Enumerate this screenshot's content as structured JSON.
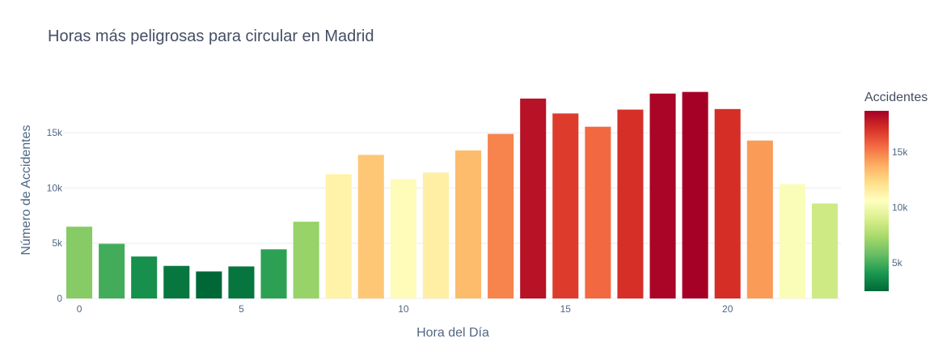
{
  "chart_data": {
    "type": "bar",
    "title": "Horas más peligrosas para circular en Madrid",
    "xlabel": "Hora del Día",
    "ylabel": "Número de Accidentes",
    "x": [
      0,
      1,
      2,
      3,
      4,
      5,
      6,
      7,
      8,
      9,
      10,
      11,
      12,
      13,
      14,
      15,
      16,
      17,
      18,
      19,
      20,
      21,
      22,
      23
    ],
    "values": [
      6500,
      4950,
      3800,
      2950,
      2450,
      2900,
      4450,
      6950,
      11250,
      13000,
      10800,
      11400,
      13400,
      14900,
      18100,
      16750,
      15550,
      17100,
      18550,
      18700,
      17150,
      14300,
      10350,
      8600
    ],
    "x_ticks": [
      "0",
      "5",
      "10",
      "15",
      "20"
    ],
    "x_tick_values": [
      0,
      5,
      10,
      15,
      20
    ],
    "y_ticks": [
      "0",
      "5k",
      "10k",
      "15k"
    ],
    "y_tick_values": [
      0,
      5000,
      10000,
      15000
    ],
    "ylim": [
      0,
      19700
    ],
    "xlim": [
      -0.5,
      23.5
    ],
    "grid": true,
    "colorscale": "RdYlGn-reversed",
    "colorbar": {
      "title": "Accidentes",
      "ticks": [
        "5k",
        "10k",
        "15k"
      ],
      "tick_values": [
        5000,
        10000,
        15000
      ],
      "range": [
        2450,
        18700
      ],
      "colors": [
        "#006837",
        "#1a9850",
        "#66bd63",
        "#a6d96a",
        "#d9ef8b",
        "#ffffbf",
        "#fee08b",
        "#fdae61",
        "#f46d43",
        "#d73027",
        "#a50026"
      ]
    }
  }
}
